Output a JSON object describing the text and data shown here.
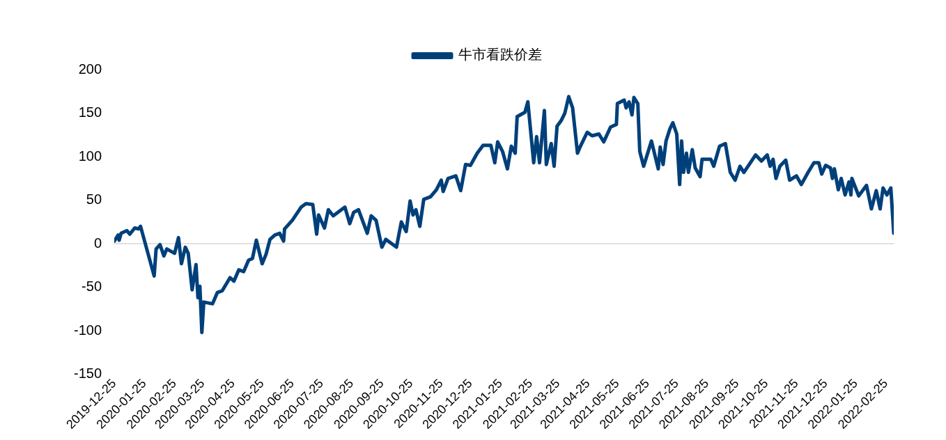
{
  "chart_data": {
    "type": "line",
    "legend": "top",
    "ref_lines": [
      {
        "axis": "y",
        "value": 0,
        "color": "#d9d9d9"
      }
    ],
    "xlim": [
      "2019-12-25",
      "2022-03-05"
    ],
    "ylim": [
      -150,
      200
    ],
    "yticks": [
      -150,
      -100,
      -50,
      0,
      50,
      100,
      150,
      200
    ],
    "xticks": [
      "2019-12-25",
      "2020-01-25",
      "2020-02-25",
      "2020-03-25",
      "2020-04-25",
      "2020-05-25",
      "2020-06-25",
      "2020-07-25",
      "2020-08-25",
      "2020-09-25",
      "2020-10-25",
      "2020-11-25",
      "2020-12-25",
      "2021-01-25",
      "2021-02-25",
      "2021-03-25",
      "2021-04-25",
      "2021-05-25",
      "2021-06-25",
      "2021-07-25",
      "2021-08-25",
      "2021-09-25",
      "2021-10-25",
      "2021-11-25",
      "2021-12-25",
      "2022-01-25",
      "2022-02-25"
    ],
    "x": [
      "2019-12-25",
      "2019-12-29",
      "2019-12-30",
      "2020-01-01",
      "2020-01-07",
      "2020-01-10",
      "2020-01-15",
      "2020-01-19",
      "2020-01-21",
      "2020-02-04",
      "2020-02-06",
      "2020-02-10",
      "2020-02-14",
      "2020-02-17",
      "2020-02-25",
      "2020-02-29",
      "2020-03-03",
      "2020-03-07",
      "2020-03-10",
      "2020-03-14",
      "2020-03-18",
      "2020-03-20",
      "2020-03-22",
      "2020-03-24",
      "2020-03-26",
      "2020-04-04",
      "2020-04-09",
      "2020-04-14",
      "2020-04-22",
      "2020-04-26",
      "2020-05-01",
      "2020-05-06",
      "2020-05-11",
      "2020-05-15",
      "2020-05-19",
      "2020-05-25",
      "2020-05-29",
      "2020-06-02",
      "2020-06-07",
      "2020-06-12",
      "2020-06-16",
      "2020-06-17",
      "2020-06-25",
      "2020-07-04",
      "2020-07-09",
      "2020-07-16",
      "2020-07-20",
      "2020-07-22",
      "2020-07-28",
      "2020-08-01",
      "2020-08-06",
      "2020-08-18",
      "2020-08-23",
      "2020-08-27",
      "2020-09-01",
      "2020-09-10",
      "2020-09-14",
      "2020-09-19",
      "2020-09-25",
      "2020-09-29",
      "2020-10-10",
      "2020-10-15",
      "2020-10-20",
      "2020-10-24",
      "2020-10-27",
      "2020-10-30",
      "2020-11-03",
      "2020-11-07",
      "2020-11-14",
      "2020-11-20",
      "2020-11-25",
      "2020-11-27",
      "2020-12-02",
      "2020-12-10",
      "2020-12-15",
      "2020-12-20",
      "2020-12-25",
      "2021-01-01",
      "2021-01-07",
      "2021-01-15",
      "2021-01-19",
      "2021-01-22",
      "2021-01-27",
      "2021-02-01",
      "2021-02-05",
      "2021-02-09",
      "2021-02-11",
      "2021-02-19",
      "2021-02-22",
      "2021-02-28",
      "2021-03-03",
      "2021-03-06",
      "2021-03-11",
      "2021-03-13",
      "2021-03-18",
      "2021-03-21",
      "2021-03-24",
      "2021-03-28",
      "2021-04-01",
      "2021-04-05",
      "2021-04-09",
      "2021-04-14",
      "2021-04-17",
      "2021-04-24",
      "2021-04-29",
      "2021-05-06",
      "2021-05-11",
      "2021-05-18",
      "2021-05-24",
      "2021-05-25",
      "2021-06-01",
      "2021-06-03",
      "2021-06-06",
      "2021-06-09",
      "2021-06-11",
      "2021-06-15",
      "2021-06-17",
      "2021-06-21",
      "2021-06-29",
      "2021-07-06",
      "2021-07-08",
      "2021-07-11",
      "2021-07-14",
      "2021-07-18",
      "2021-07-21",
      "2021-07-25",
      "2021-07-28",
      "2021-07-30",
      "2021-08-01",
      "2021-08-04",
      "2021-08-06",
      "2021-08-10",
      "2021-08-13",
      "2021-08-18",
      "2021-08-20",
      "2021-08-29",
      "2021-09-01",
      "2021-09-07",
      "2021-09-13",
      "2021-09-18",
      "2021-09-23",
      "2021-09-28",
      "2021-10-02",
      "2021-10-14",
      "2021-10-20",
      "2021-10-26",
      "2021-10-29",
      "2021-11-01",
      "2021-11-04",
      "2021-11-08",
      "2021-11-14",
      "2021-11-18",
      "2021-11-25",
      "2021-11-30",
      "2021-12-07",
      "2021-12-13",
      "2021-12-18",
      "2021-12-21",
      "2021-12-25",
      "2021-12-30",
      "2022-01-01",
      "2022-01-03",
      "2022-01-07",
      "2022-01-10",
      "2022-01-14",
      "2022-01-18",
      "2022-01-20",
      "2022-01-21",
      "2022-01-28",
      "2022-02-05",
      "2022-02-10",
      "2022-02-15",
      "2022-02-19",
      "2022-02-22",
      "2022-02-26",
      "2022-03-02",
      "2022-03-05"
    ],
    "series": [
      {
        "name": "牛市看跌价差",
        "color": "#00407a",
        "values": [
          3,
          10,
          4,
          12,
          15,
          11,
          18,
          17,
          20,
          -37,
          -6,
          -1,
          -14,
          -6,
          -11,
          7,
          -23,
          -4,
          -11,
          -53,
          -24,
          -62,
          -49,
          -102,
          -67,
          -69,
          -56,
          -54,
          -39,
          -43,
          -30,
          -32,
          -19,
          -17,
          4,
          -23,
          -12,
          5,
          10,
          12,
          3,
          17,
          27,
          42,
          46,
          45,
          11,
          33,
          18,
          39,
          32,
          42,
          23,
          36,
          39,
          12,
          32,
          27,
          -4,
          5,
          -4,
          25,
          14,
          49,
          33,
          39,
          20,
          51,
          54,
          62,
          73,
          60,
          75,
          78,
          61,
          91,
          90,
          104,
          113,
          113,
          93,
          117,
          106,
          86,
          112,
          104,
          146,
          151,
          163,
          93,
          123,
          93,
          153,
          91,
          115,
          89,
          135,
          141,
          150,
          169,
          156,
          104,
          112,
          128,
          124,
          126,
          117,
          134,
          137,
          161,
          165,
          156,
          163,
          148,
          168,
          161,
          106,
          89,
          118,
          86,
          111,
          91,
          118,
          132,
          139,
          126,
          68,
          118,
          82,
          104,
          82,
          108,
          87,
          77,
          97,
          97,
          89,
          112,
          115,
          82,
          73,
          89,
          82,
          102,
          95,
          102,
          89,
          97,
          75,
          89,
          96,
          73,
          78,
          68,
          82,
          93,
          93,
          80,
          90,
          87,
          75,
          86,
          62,
          75,
          56,
          71,
          56,
          75,
          55,
          67,
          40,
          61,
          40,
          64,
          56,
          64,
          12
        ]
      }
    ]
  }
}
